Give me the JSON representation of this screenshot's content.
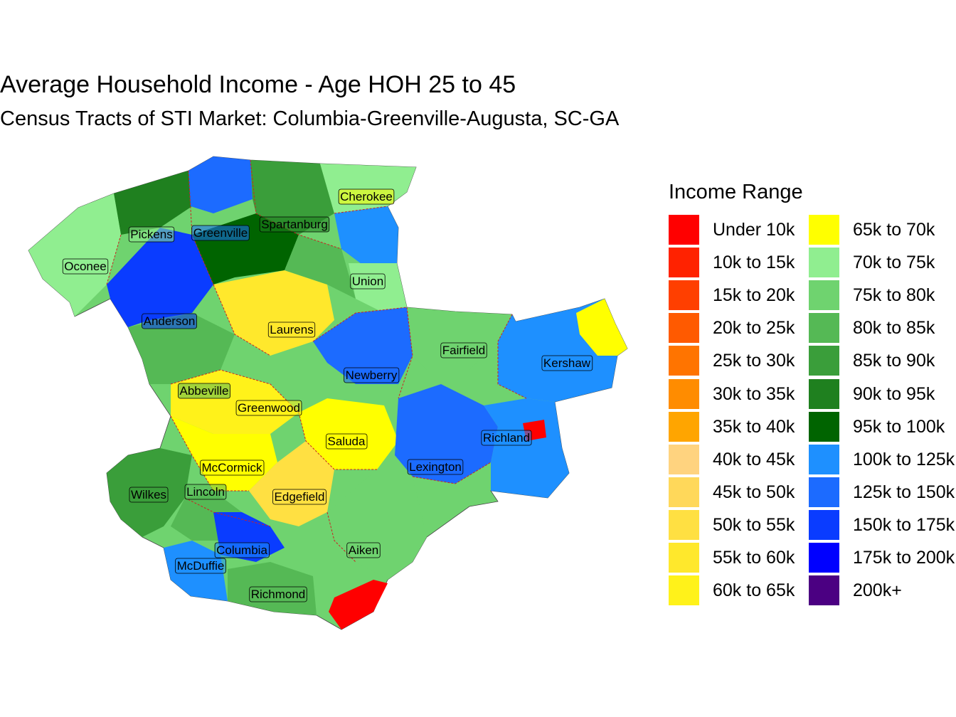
{
  "title": "Average Household Income - Age HOH 25 to 45",
  "subtitle": "Census Tracts of STI Market: Columbia-Greenville-Augusta, SC-GA",
  "legend": {
    "title": "Income Range",
    "items": [
      {
        "label": "Under 10k",
        "color": "#FF0000"
      },
      {
        "label": "10k to 15k",
        "color": "#FF2200"
      },
      {
        "label": "15k to 20k",
        "color": "#FF3F00"
      },
      {
        "label": "20k to 25k",
        "color": "#FF5A00"
      },
      {
        "label": "25k to 30k",
        "color": "#FF7400"
      },
      {
        "label": "30k to 35k",
        "color": "#FF8C00"
      },
      {
        "label": "35k to 40k",
        "color": "#FFA500"
      },
      {
        "label": "40k to 45k",
        "color": "#FFD37F"
      },
      {
        "label": "45k to 50k",
        "color": "#FFD85A"
      },
      {
        "label": "50k to 55k",
        "color": "#FFE042"
      },
      {
        "label": "55k to 60k",
        "color": "#FFE82C"
      },
      {
        "label": "60k to 65k",
        "color": "#FFF21A"
      },
      {
        "label": "65k to 70k",
        "color": "#FFFF00"
      },
      {
        "label": "70k to 75k",
        "color": "#90EE90"
      },
      {
        "label": "75k to 80k",
        "color": "#6FD36F"
      },
      {
        "label": "80k to 85k",
        "color": "#55B955"
      },
      {
        "label": "85k to 90k",
        "color": "#3A9E3A"
      },
      {
        "label": "90k to 95k",
        "color": "#1F801F"
      },
      {
        "label": "95k to 100k",
        "color": "#006400"
      },
      {
        "label": "100k to 125k",
        "color": "#1E90FF"
      },
      {
        "label": "125k to 150k",
        "color": "#1C6BFF"
      },
      {
        "label": "150k to 175k",
        "color": "#0A3CFF"
      },
      {
        "label": "175k to 200k",
        "color": "#0000FF"
      },
      {
        "label": "200k+",
        "color": "#4B0082"
      }
    ]
  },
  "counties": [
    {
      "name": "Cherokee",
      "fill": "#FFFF00"
    },
    {
      "name": "Spartanburg",
      "fill": "#1F801F"
    },
    {
      "name": "Greenville",
      "fill": "#1C6BFF"
    },
    {
      "name": "Pickens",
      "fill": "#90EE90"
    },
    {
      "name": "Oconee",
      "fill": "#90EE90"
    },
    {
      "name": "Union",
      "fill": "#90EE90"
    },
    {
      "name": "Anderson",
      "fill": "#0A3CFF"
    },
    {
      "name": "Laurens",
      "fill": "#FFE82C"
    },
    {
      "name": "Fairfield",
      "fill": "#6FD36F"
    },
    {
      "name": "Kershaw",
      "fill": "#1E90FF"
    },
    {
      "name": "Newberry",
      "fill": "#1C6BFF"
    },
    {
      "name": "Abbeville",
      "fill": "#55B955"
    },
    {
      "name": "Greenwood",
      "fill": "#FFF21A"
    },
    {
      "name": "Richland",
      "fill": "#1E90FF"
    },
    {
      "name": "Saluda",
      "fill": "#FFFF00"
    },
    {
      "name": "McCormick",
      "fill": "#FFFF00"
    },
    {
      "name": "Lexington",
      "fill": "#1C6BFF"
    },
    {
      "name": "Wilkes",
      "fill": "#3A9E3A"
    },
    {
      "name": "Lincoln",
      "fill": "#55B955"
    },
    {
      "name": "Edgefield",
      "fill": "#FFE042"
    },
    {
      "name": "Columbia",
      "fill": "#1E90FF"
    },
    {
      "name": "Aiken",
      "fill": "#6FD36F"
    },
    {
      "name": "McDuffie",
      "fill": "#1E90FF"
    },
    {
      "name": "Richmond",
      "fill": "#55B955"
    }
  ]
}
